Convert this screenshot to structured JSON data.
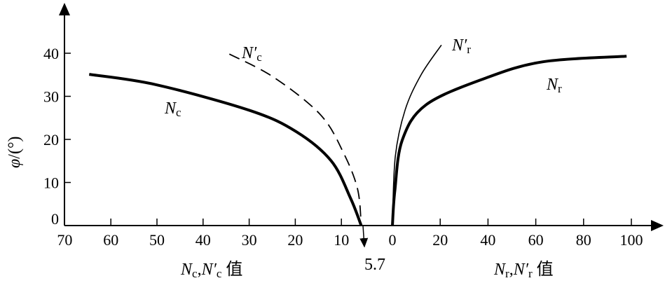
{
  "chart_data": {
    "type": "line",
    "ylabel": {
      "symbol": "φ",
      "unit": "/(°)"
    },
    "ylim": [
      0,
      45
    ],
    "yticks": [
      "0",
      "10",
      "20",
      "30",
      "40"
    ],
    "left_axis": {
      "label": {
        "n1": "N",
        "s1": "c",
        "sep": ",",
        "n2": "N′",
        "s2": "c",
        "suffix": " 值"
      },
      "range": [
        70,
        0
      ],
      "ticks": [
        "70",
        "60",
        "50",
        "40",
        "30",
        "20",
        "10",
        "0"
      ]
    },
    "right_axis": {
      "label": {
        "n1": "N",
        "s1": "r",
        "sep": ",",
        "n2": "N′",
        "s2": "r",
        "suffix": " 值"
      },
      "range": [
        0,
        100
      ],
      "ticks": [
        "0",
        "20",
        "40",
        "60",
        "80",
        "100"
      ]
    },
    "annotation": "5.7",
    "series": [
      {
        "name": "Nc",
        "label": {
          "n": "N",
          "s": "c"
        },
        "side": "left",
        "style": "solid-thick",
        "points": [
          [
            64.7,
            35.1
          ],
          [
            50.2,
            32.7
          ],
          [
            29.8,
            26.7
          ],
          [
            19.8,
            21.8
          ],
          [
            12.2,
            15
          ],
          [
            8,
            6.3
          ],
          [
            5.7,
            0
          ]
        ]
      },
      {
        "name": "N′c",
        "label": {
          "n": "N′",
          "s": "c"
        },
        "side": "left",
        "style": "dashed",
        "points": [
          [
            34.3,
            39.8
          ],
          [
            24.8,
            34.5
          ],
          [
            14.6,
            25.8
          ],
          [
            9.6,
            17
          ],
          [
            6.5,
            8.5
          ],
          [
            5.7,
            0
          ]
        ]
      },
      {
        "name": "Nr",
        "label": {
          "n": "N",
          "s": "r"
        },
        "side": "right",
        "style": "solid-thick",
        "points": [
          [
            0,
            0
          ],
          [
            1,
            8
          ],
          [
            4.1,
            19.8
          ],
          [
            14,
            28
          ],
          [
            38.4,
            34.1
          ],
          [
            62.8,
            38
          ],
          [
            98,
            39.3
          ]
        ]
      },
      {
        "name": "N′r",
        "label": {
          "n": "N′",
          "s": "r"
        },
        "side": "right",
        "style": "solid-thin",
        "points": [
          [
            0,
            0
          ],
          [
            1.2,
            16
          ],
          [
            5.3,
            26.8
          ],
          [
            12,
            35
          ],
          [
            20.5,
            41.9
          ]
        ]
      }
    ]
  }
}
